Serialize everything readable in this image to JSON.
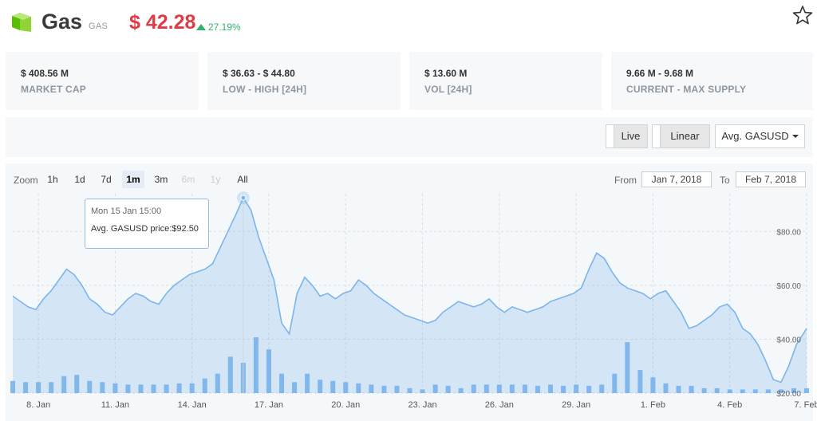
{
  "coin": {
    "name": "Gas",
    "symbol": "GAS",
    "price": "$ 42.28",
    "change": "27.19%",
    "brand_color": "#58bf00",
    "price_color": "#e03a46",
    "change_color": "#2fb36b",
    "favorite_icon": "star-icon"
  },
  "stats": [
    {
      "value": "$ 408.56 M",
      "label": "MARKET CAP"
    },
    {
      "value": "$ 36.63 - $ 44.80",
      "label": "LOW - HIGH [24H]"
    },
    {
      "value": "$ 13.60 M",
      "label": "VOL [24H]"
    },
    {
      "value": "9.66 M - 9.68 M",
      "label": "CURRENT - MAX SUPPLY"
    }
  ],
  "controls": {
    "live_label": "Live",
    "scale_label": "Linear",
    "series_select": "Avg. GASUSD"
  },
  "zoom": {
    "label": "Zoom",
    "buttons": [
      {
        "label": "1h",
        "state": "normal"
      },
      {
        "label": "1d",
        "state": "normal"
      },
      {
        "label": "7d",
        "state": "normal"
      },
      {
        "label": "1m",
        "state": "active"
      },
      {
        "label": "3m",
        "state": "normal"
      },
      {
        "label": "6m",
        "state": "disabled"
      },
      {
        "label": "1y",
        "state": "disabled"
      },
      {
        "label": "All",
        "state": "normal"
      }
    ]
  },
  "range": {
    "from_label": "From",
    "from_value": "Jan 7, 2018",
    "to_label": "To",
    "to_value": "Feb 7, 2018"
  },
  "tooltip": {
    "date": "Mon 15 Jan 15:00",
    "series": "Avg. GASUSD price:",
    "value": "$92.50"
  },
  "chart_data": {
    "type": "area",
    "series_name": "Avg. GASUSD",
    "price_color": "#7cb5ec",
    "volume_color": "#7cb5ec",
    "x_start": "2018-01-07",
    "x_end": "2018-02-07",
    "x_ticks": [
      "8. Jan",
      "11. Jan",
      "14. Jan",
      "17. Jan",
      "20. Jan",
      "23. Jan",
      "26. Jan",
      "29. Jan",
      "1. Feb",
      "4. Feb",
      "7. Feb"
    ],
    "y_ticks": [
      "$20.00",
      "$40.00",
      "$60.00",
      "$80.00"
    ],
    "ylim": [
      20,
      94
    ],
    "grid": true,
    "price": {
      "x_days": [
        0,
        0.3,
        0.6,
        0.9,
        1.2,
        1.5,
        1.8,
        2.1,
        2.4,
        2.7,
        3.0,
        3.3,
        3.6,
        3.9,
        4.2,
        4.5,
        4.8,
        5.1,
        5.4,
        5.7,
        6.0,
        6.3,
        6.6,
        6.9,
        7.2,
        7.5,
        7.8,
        8.1,
        8.4,
        8.7,
        9.0,
        9.3,
        9.6,
        9.9,
        10.2,
        10.5,
        10.8,
        11.1,
        11.4,
        11.7,
        12.0,
        12.3,
        12.6,
        12.9,
        13.2,
        13.5,
        13.8,
        14.1,
        14.4,
        14.7,
        15.0,
        15.3,
        15.6,
        15.9,
        16.2,
        16.5,
        16.8,
        17.1,
        17.4,
        17.7,
        18.0,
        18.3,
        18.6,
        18.9,
        19.2,
        19.5,
        19.8,
        20.1,
        20.4,
        20.7,
        21.0,
        21.3,
        21.6,
        21.9,
        22.2,
        22.5,
        22.8,
        23.1,
        23.4,
        23.7,
        24.0,
        24.3,
        24.6,
        24.9,
        25.2,
        25.5,
        25.8,
        26.1,
        26.4,
        26.7,
        27.0,
        27.3,
        27.6,
        27.9,
        28.2,
        28.5,
        28.8,
        29.1,
        29.4,
        29.7,
        30.0,
        30.3,
        30.6,
        31.0
      ],
      "values": [
        56,
        54,
        52,
        51,
        55,
        58,
        62,
        66,
        64,
        60,
        55,
        53,
        50,
        49,
        52,
        55,
        57,
        56,
        54,
        53,
        57,
        60,
        62,
        64,
        65,
        66,
        68,
        74,
        80,
        86,
        92.5,
        88,
        78,
        70,
        62,
        46,
        42,
        57,
        63,
        60,
        56,
        57,
        55,
        57,
        58,
        62,
        60,
        57,
        55,
        53,
        51,
        49,
        48,
        47,
        46,
        47,
        50,
        52,
        54,
        53,
        52,
        53,
        55,
        52,
        50,
        52,
        51,
        50,
        51,
        52,
        54,
        55,
        56,
        57,
        59,
        66,
        72,
        70,
        65,
        61,
        59,
        58,
        57,
        55,
        57,
        58,
        54,
        50,
        44,
        45,
        47,
        49,
        52,
        53,
        50,
        44,
        42,
        38,
        32,
        25,
        24,
        30,
        38,
        44
      ]
    },
    "volume": {
      "x_days": [
        0,
        0.5,
        1,
        1.5,
        2,
        2.5,
        3,
        3.5,
        4,
        4.5,
        5,
        5.5,
        6,
        6.5,
        7,
        7.5,
        8,
        8.5,
        9,
        9.5,
        10,
        10.5,
        11,
        11.5,
        12,
        12.5,
        13,
        13.5,
        14,
        14.5,
        15,
        15.5,
        16,
        16.5,
        17,
        17.5,
        18,
        18.5,
        19,
        19.5,
        20,
        20.5,
        21,
        21.5,
        22,
        22.5,
        23,
        23.5,
        24,
        24.5,
        25,
        25.5,
        26,
        26.5,
        27,
        27.5,
        28,
        28.5,
        29,
        29.5,
        30,
        30.5,
        31
      ],
      "values": [
        5,
        4.5,
        4.5,
        4.5,
        7,
        7.5,
        5,
        4.5,
        4,
        3.5,
        3.5,
        3.5,
        3.5,
        4,
        4,
        6,
        8,
        15,
        12.5,
        23,
        18,
        8,
        4.5,
        8,
        5.5,
        5,
        4.5,
        4,
        3.5,
        3,
        3,
        2,
        1.5,
        3.5,
        3,
        2,
        3.5,
        3.5,
        3.5,
        3.5,
        3.5,
        3,
        3.5,
        3,
        3.5,
        3,
        3.5,
        8,
        21,
        9.5,
        6.5,
        4,
        3,
        3,
        2,
        2,
        1.5,
        1.5,
        1.5,
        1.5,
        1.5,
        2,
        2
      ]
    }
  }
}
